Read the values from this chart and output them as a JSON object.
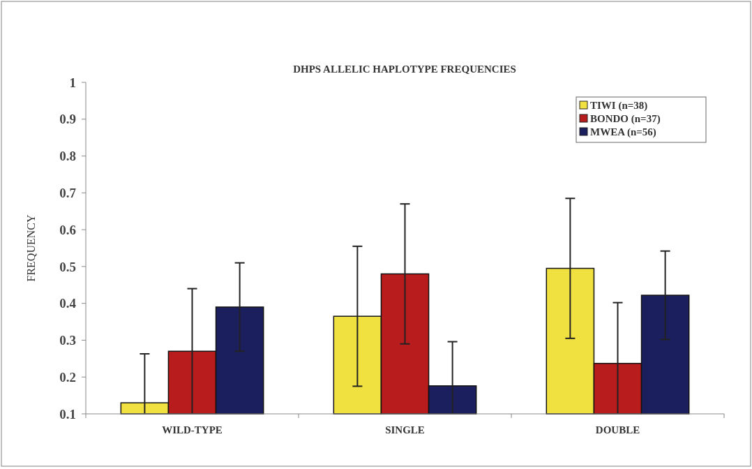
{
  "chart_data": {
    "type": "bar",
    "title": "DHPS ALLELIC HAPLOTYPE FREQUENCIES",
    "ylabel": "FREQUENCY",
    "categories": [
      "WILD-TYPE",
      "SINGLE",
      "DOUBLE"
    ],
    "series": [
      {
        "name": "TIWI (n=38)",
        "color": "#f0e040",
        "values": [
          0.13,
          0.365,
          0.495
        ],
        "errors": [
          [
            0.1,
            0.263
          ],
          0.19,
          0.19
        ]
      },
      {
        "name": "BONDO (n=37)",
        "color": "#b81c1c",
        "values": [
          0.27,
          0.48,
          0.237
        ],
        "errors": [
          0.17,
          0.19,
          [
            0.1,
            0.402
          ]
        ]
      },
      {
        "name": "MWEA (n=56)",
        "color": "#1c1f5e",
        "values": [
          0.39,
          0.176,
          0.422
        ],
        "errors": [
          0.12,
          [
            0.1,
            0.296
          ],
          0.12
        ]
      }
    ],
    "ylim": [
      0.1,
      1
    ],
    "yticks": [
      0.1,
      0.2,
      0.3,
      0.4,
      0.5,
      0.6,
      0.7,
      0.8,
      0.9,
      1
    ],
    "grid": false,
    "legend": "top right"
  }
}
